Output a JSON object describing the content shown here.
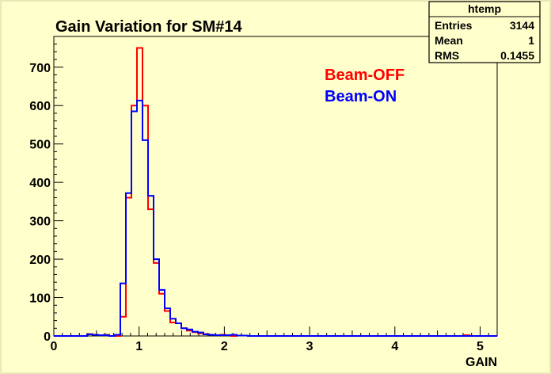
{
  "chart_data": {
    "type": "histogram",
    "title": "Gain Variation for SM#14",
    "xlabel": "GAIN",
    "ylabel": "",
    "xlim": [
      0,
      5.2
    ],
    "ylim": [
      0,
      780
    ],
    "x_ticks": [
      "0",
      "1",
      "2",
      "3",
      "4",
      "5"
    ],
    "y_ticks": [
      "0",
      "100",
      "200",
      "300",
      "400",
      "500",
      "600",
      "700"
    ],
    "bin_start": 0.0,
    "bin_width": 0.065,
    "grid": false,
    "stats_box": {
      "title": "htemp",
      "rows": [
        {
          "label": "Entries",
          "value": "3144"
        },
        {
          "label": "Mean",
          "value": "1"
        },
        {
          "label": "RMS",
          "value": "0.1455"
        }
      ]
    },
    "legend_position": "top-center",
    "series": [
      {
        "name": "Beam-OFF",
        "color": "#ff0000",
        "values": [
          0,
          0,
          0,
          0,
          0,
          0,
          5,
          3,
          2,
          3,
          0,
          0,
          50,
          360,
          600,
          750,
          600,
          330,
          190,
          110,
          65,
          35,
          33,
          20,
          14,
          10,
          7,
          5,
          3,
          2,
          3,
          2,
          0,
          1,
          1,
          0,
          0,
          0,
          0,
          0,
          0,
          0,
          0,
          0,
          0,
          0,
          0,
          0,
          0,
          0,
          0,
          0,
          0,
          0,
          0,
          0,
          0,
          0,
          0,
          0,
          0,
          0,
          0,
          0,
          0,
          0,
          0,
          0,
          0,
          0,
          0,
          0,
          0,
          0,
          2,
          0,
          0,
          0,
          0,
          0
        ]
      },
      {
        "name": "Beam-ON",
        "color": "#0000ff",
        "values": [
          0,
          0,
          0,
          0,
          0,
          0,
          4,
          3,
          2,
          2,
          0,
          3,
          137,
          372,
          585,
          613,
          510,
          365,
          200,
          120,
          72,
          45,
          33,
          20,
          17,
          11,
          9,
          4,
          3,
          2,
          2,
          2,
          3,
          1,
          1,
          0,
          0,
          0,
          0,
          0,
          0,
          0,
          0,
          0,
          0,
          0,
          0,
          0,
          0,
          0,
          0,
          0,
          0,
          0,
          0,
          0,
          0,
          0,
          0,
          0,
          0,
          0,
          0,
          0,
          0,
          0,
          0,
          0,
          0,
          0,
          0,
          0,
          0,
          0,
          0,
          0,
          0,
          0,
          0,
          0
        ]
      }
    ]
  }
}
